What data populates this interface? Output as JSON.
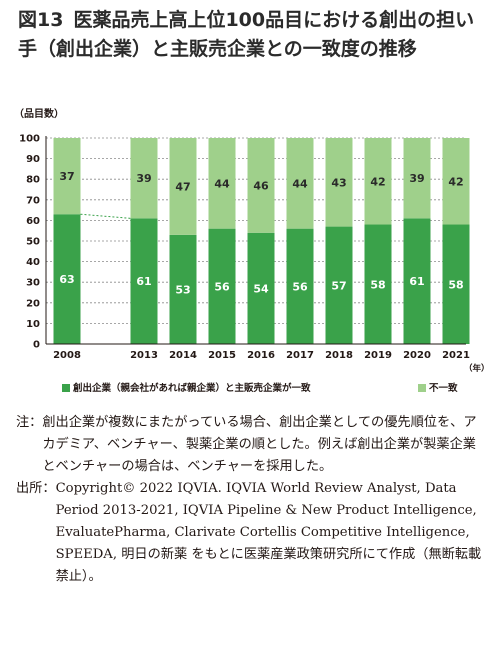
{
  "title": {
    "number": "図13",
    "text": "医薬品売上高上位100品目における創出の担い手（創出企業）と主販売企業との一致度の推移"
  },
  "chart_data": {
    "type": "bar",
    "stacked": true,
    "y_unit_label": "（品目数）",
    "x_unit_label": "（年）",
    "ylim": [
      0,
      100
    ],
    "yticks": [
      "0",
      "10",
      "20",
      "30",
      "40",
      "50",
      "60",
      "70",
      "80",
      "90",
      "100"
    ],
    "categories": [
      "2008",
      "2013",
      "2014",
      "2015",
      "2016",
      "2017",
      "2018",
      "2019",
      "2020",
      "2021"
    ],
    "series": [
      {
        "name": "創出企業（親会社があれば親企業）と主販売企業が一致",
        "color": "#3aa24a",
        "values": [
          63,
          61,
          53,
          56,
          54,
          56,
          57,
          58,
          61,
          58
        ]
      },
      {
        "name": "不一致",
        "color": "#9fd08b",
        "values": [
          37,
          39,
          47,
          44,
          46,
          44,
          43,
          42,
          39,
          42
        ]
      }
    ],
    "grid": true,
    "legend_position": "bottom"
  },
  "legend": [
    {
      "label": "創出企業（親会社があれば親企業）と主販売企業が一致",
      "color": "#3aa24a"
    },
    {
      "label": "不一致",
      "color": "#9fd08b"
    }
  ],
  "notes": {
    "note_key": "注：",
    "note_text": "創出企業が複数にまたがっている場合、創出企業としての優先順位を、アカデミア、ベンチャー、製薬企業の順とした。例えば創出企業が製薬企業とベンチャーの場合は、ベンチャーを採用した。",
    "source_key": "出所：",
    "source_text": "Copyright© 2022 IQVIA. IQVIA World Review Analyst, Data Period 2013-2021, IQVIA Pipeline & New Product Intelligence, EvaluatePharma, Clarivate Cortellis Competitive Intelligence, SPEEDA, 明日の新薬 をもとに医薬産業政策研究所にて作成（無断転載禁止）。"
  }
}
